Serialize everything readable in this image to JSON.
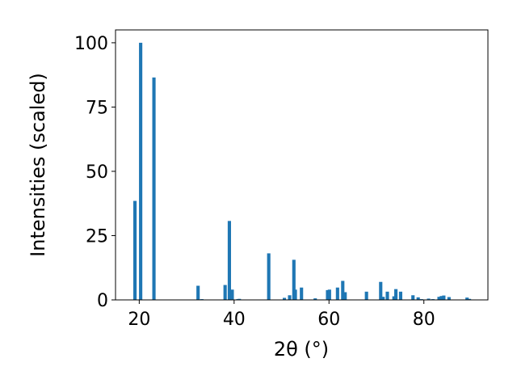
{
  "chart_data": {
    "type": "bar",
    "title": "",
    "xlabel": "2θ (°)",
    "ylabel": "Intensities (scaled)",
    "xlim": [
      15,
      93.5
    ],
    "ylim": [
      0,
      105
    ],
    "xticks": [
      20,
      40,
      60,
      80
    ],
    "yticks": [
      0,
      25,
      50,
      75,
      100
    ],
    "grid": false,
    "legend": "none",
    "bar_color": "#1f77b4",
    "bar_width": 0.7,
    "x": [
      19.1,
      20.3,
      23.1,
      32.4,
      33.2,
      38.1,
      39.0,
      39.6,
      40.8,
      41.1,
      47.3,
      50.6,
      51.7,
      52.6,
      52.9,
      54.2,
      57.1,
      59.7,
      60.1,
      61.8,
      62.9,
      63.4,
      67.9,
      70.9,
      71.4,
      72.3,
      73.7,
      74.1,
      75.1,
      77.7,
      78.8,
      79.5,
      81.0,
      81.9,
      83.2,
      83.7,
      84.2,
      85.3,
      89.1,
      89.6
    ],
    "values": [
      38.5,
      100.0,
      86.5,
      5.5,
      0.3,
      5.8,
      30.7,
      4.0,
      0.3,
      0.4,
      18.1,
      0.8,
      1.8,
      15.6,
      4.0,
      4.8,
      0.6,
      3.8,
      4.0,
      4.8,
      7.4,
      3.0,
      3.2,
      7.0,
      1.2,
      3.2,
      1.4,
      4.2,
      3.2,
      1.8,
      1.0,
      0.3,
      0.5,
      0.3,
      1.2,
      1.5,
      1.7,
      1.1,
      0.9,
      0.4
    ]
  }
}
